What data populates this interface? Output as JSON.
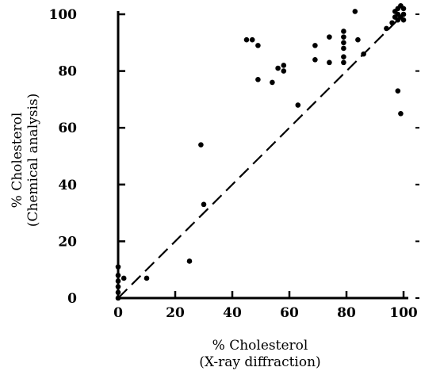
{
  "chart_data": {
    "type": "scatter",
    "title": "",
    "xlabel": [
      "% Cholesterol",
      "(X-ray diffraction)"
    ],
    "ylabel": [
      "% Cholesterol",
      "(Chemical analysis)"
    ],
    "xlim": [
      0,
      100
    ],
    "ylim": [
      0,
      100
    ],
    "xticks": [
      "0",
      "20",
      "40",
      "60",
      "80",
      "100"
    ],
    "yticks": [
      "0",
      "20",
      "40",
      "60",
      "80",
      "100"
    ],
    "grid": false,
    "reference_line": {
      "style": "dashed",
      "from": [
        0,
        0
      ],
      "to": [
        100,
        100
      ]
    },
    "series": [
      {
        "points": [
          [
            0,
            0
          ],
          [
            0,
            2
          ],
          [
            0,
            4
          ],
          [
            0,
            6
          ],
          [
            0,
            8
          ],
          [
            0,
            11
          ],
          [
            2,
            7
          ],
          [
            10,
            7
          ],
          [
            25,
            13
          ],
          [
            29,
            54
          ],
          [
            30,
            33
          ],
          [
            45,
            91
          ],
          [
            47,
            91
          ],
          [
            49,
            89
          ],
          [
            49,
            77
          ],
          [
            54,
            76
          ],
          [
            56,
            81
          ],
          [
            58,
            80
          ],
          [
            58,
            82
          ],
          [
            63,
            68
          ],
          [
            69,
            84
          ],
          [
            69,
            89
          ],
          [
            74,
            83
          ],
          [
            74,
            92
          ],
          [
            79,
            83
          ],
          [
            79,
            85
          ],
          [
            79,
            88
          ],
          [
            79,
            90
          ],
          [
            79,
            92
          ],
          [
            79,
            94
          ],
          [
            83,
            101
          ],
          [
            84,
            91
          ],
          [
            86,
            86
          ],
          [
            94,
            95
          ],
          [
            96,
            97
          ],
          [
            97,
            99
          ],
          [
            97,
            101
          ],
          [
            98,
            98
          ],
          [
            98,
            100
          ],
          [
            98,
            102
          ],
          [
            99,
            99
          ],
          [
            99,
            103
          ],
          [
            100,
            100
          ],
          [
            100,
            102
          ],
          [
            100,
            98
          ],
          [
            98,
            73
          ],
          [
            99,
            65
          ]
        ]
      }
    ]
  }
}
